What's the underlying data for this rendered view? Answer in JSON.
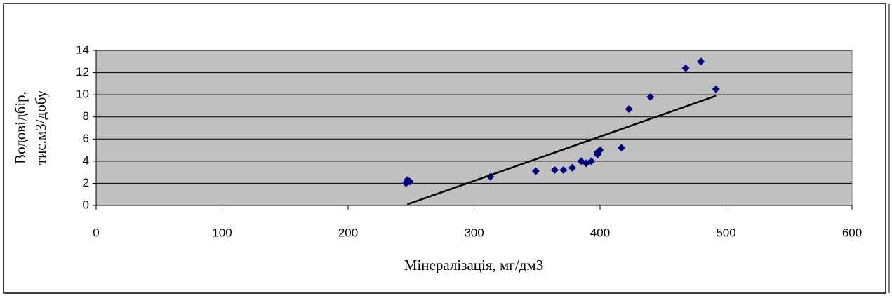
{
  "chart_data": {
    "type": "scatter",
    "xlabel": "Мінералізація, мг/дм3",
    "ylabel": [
      "Водовідбір,",
      "тис.м3/добу"
    ],
    "x": [
      247,
      249,
      246,
      313,
      349,
      364,
      371,
      378,
      385,
      389,
      393,
      398,
      400,
      398,
      417,
      423,
      440,
      468,
      480,
      492
    ],
    "values": [
      2.3,
      2.15,
      2.0,
      2.6,
      3.1,
      3.2,
      3.2,
      3.4,
      4.0,
      3.8,
      4.0,
      4.8,
      5.0,
      4.6,
      5.2,
      8.7,
      9.8,
      12.4,
      13.0,
      10.5
    ],
    "color": "#000080",
    "trendline": {
      "x": [
        247,
        492
      ],
      "values": [
        0.1,
        9.9
      ],
      "color": "#000000"
    },
    "xlim": [
      0,
      600
    ],
    "xticks": [
      0,
      100,
      200,
      300,
      400,
      500,
      600
    ],
    "ylim": [
      0,
      14
    ],
    "yticks": [
      0,
      2,
      4,
      6,
      8,
      10,
      12,
      14
    ],
    "grid": true,
    "plot_background": "#c0c0c0"
  }
}
